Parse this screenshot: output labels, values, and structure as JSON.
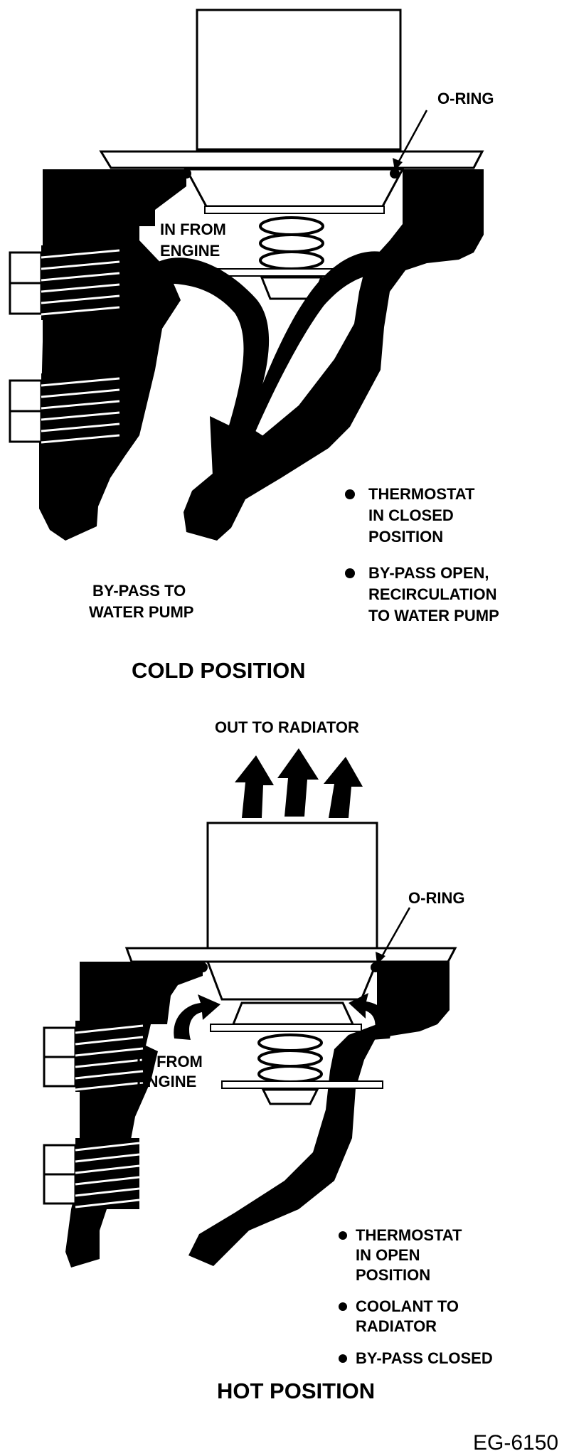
{
  "cold": {
    "o_ring_label": "O-RING",
    "in_from_engine": [
      "IN FROM",
      "ENGINE"
    ],
    "bypass_label": [
      "BY-PASS TO",
      "WATER PUMP"
    ],
    "bullets": [
      {
        "lines": [
          "THERMOSTAT",
          "IN CLOSED",
          "POSITION"
        ]
      },
      {
        "lines": [
          "BY-PASS OPEN,",
          "RECIRCULATION",
          "TO WATER PUMP"
        ]
      }
    ],
    "title": "COLD POSITION"
  },
  "hot": {
    "out_to_radiator": "OUT TO RADIATOR",
    "o_ring_label": "O-RING",
    "in_from_engine": [
      "IN FROM",
      "ENGINE"
    ],
    "bullets": [
      {
        "lines": [
          "THERMOSTAT",
          "IN OPEN",
          "POSITION"
        ]
      },
      {
        "lines": [
          "COOLANT TO",
          "RADIATOR"
        ]
      },
      {
        "lines": [
          "BY-PASS CLOSED"
        ]
      }
    ],
    "title": "HOT POSITION"
  },
  "figure_id": "EG-6150",
  "colors": {
    "ink": "#000000",
    "paper": "#ffffff"
  }
}
